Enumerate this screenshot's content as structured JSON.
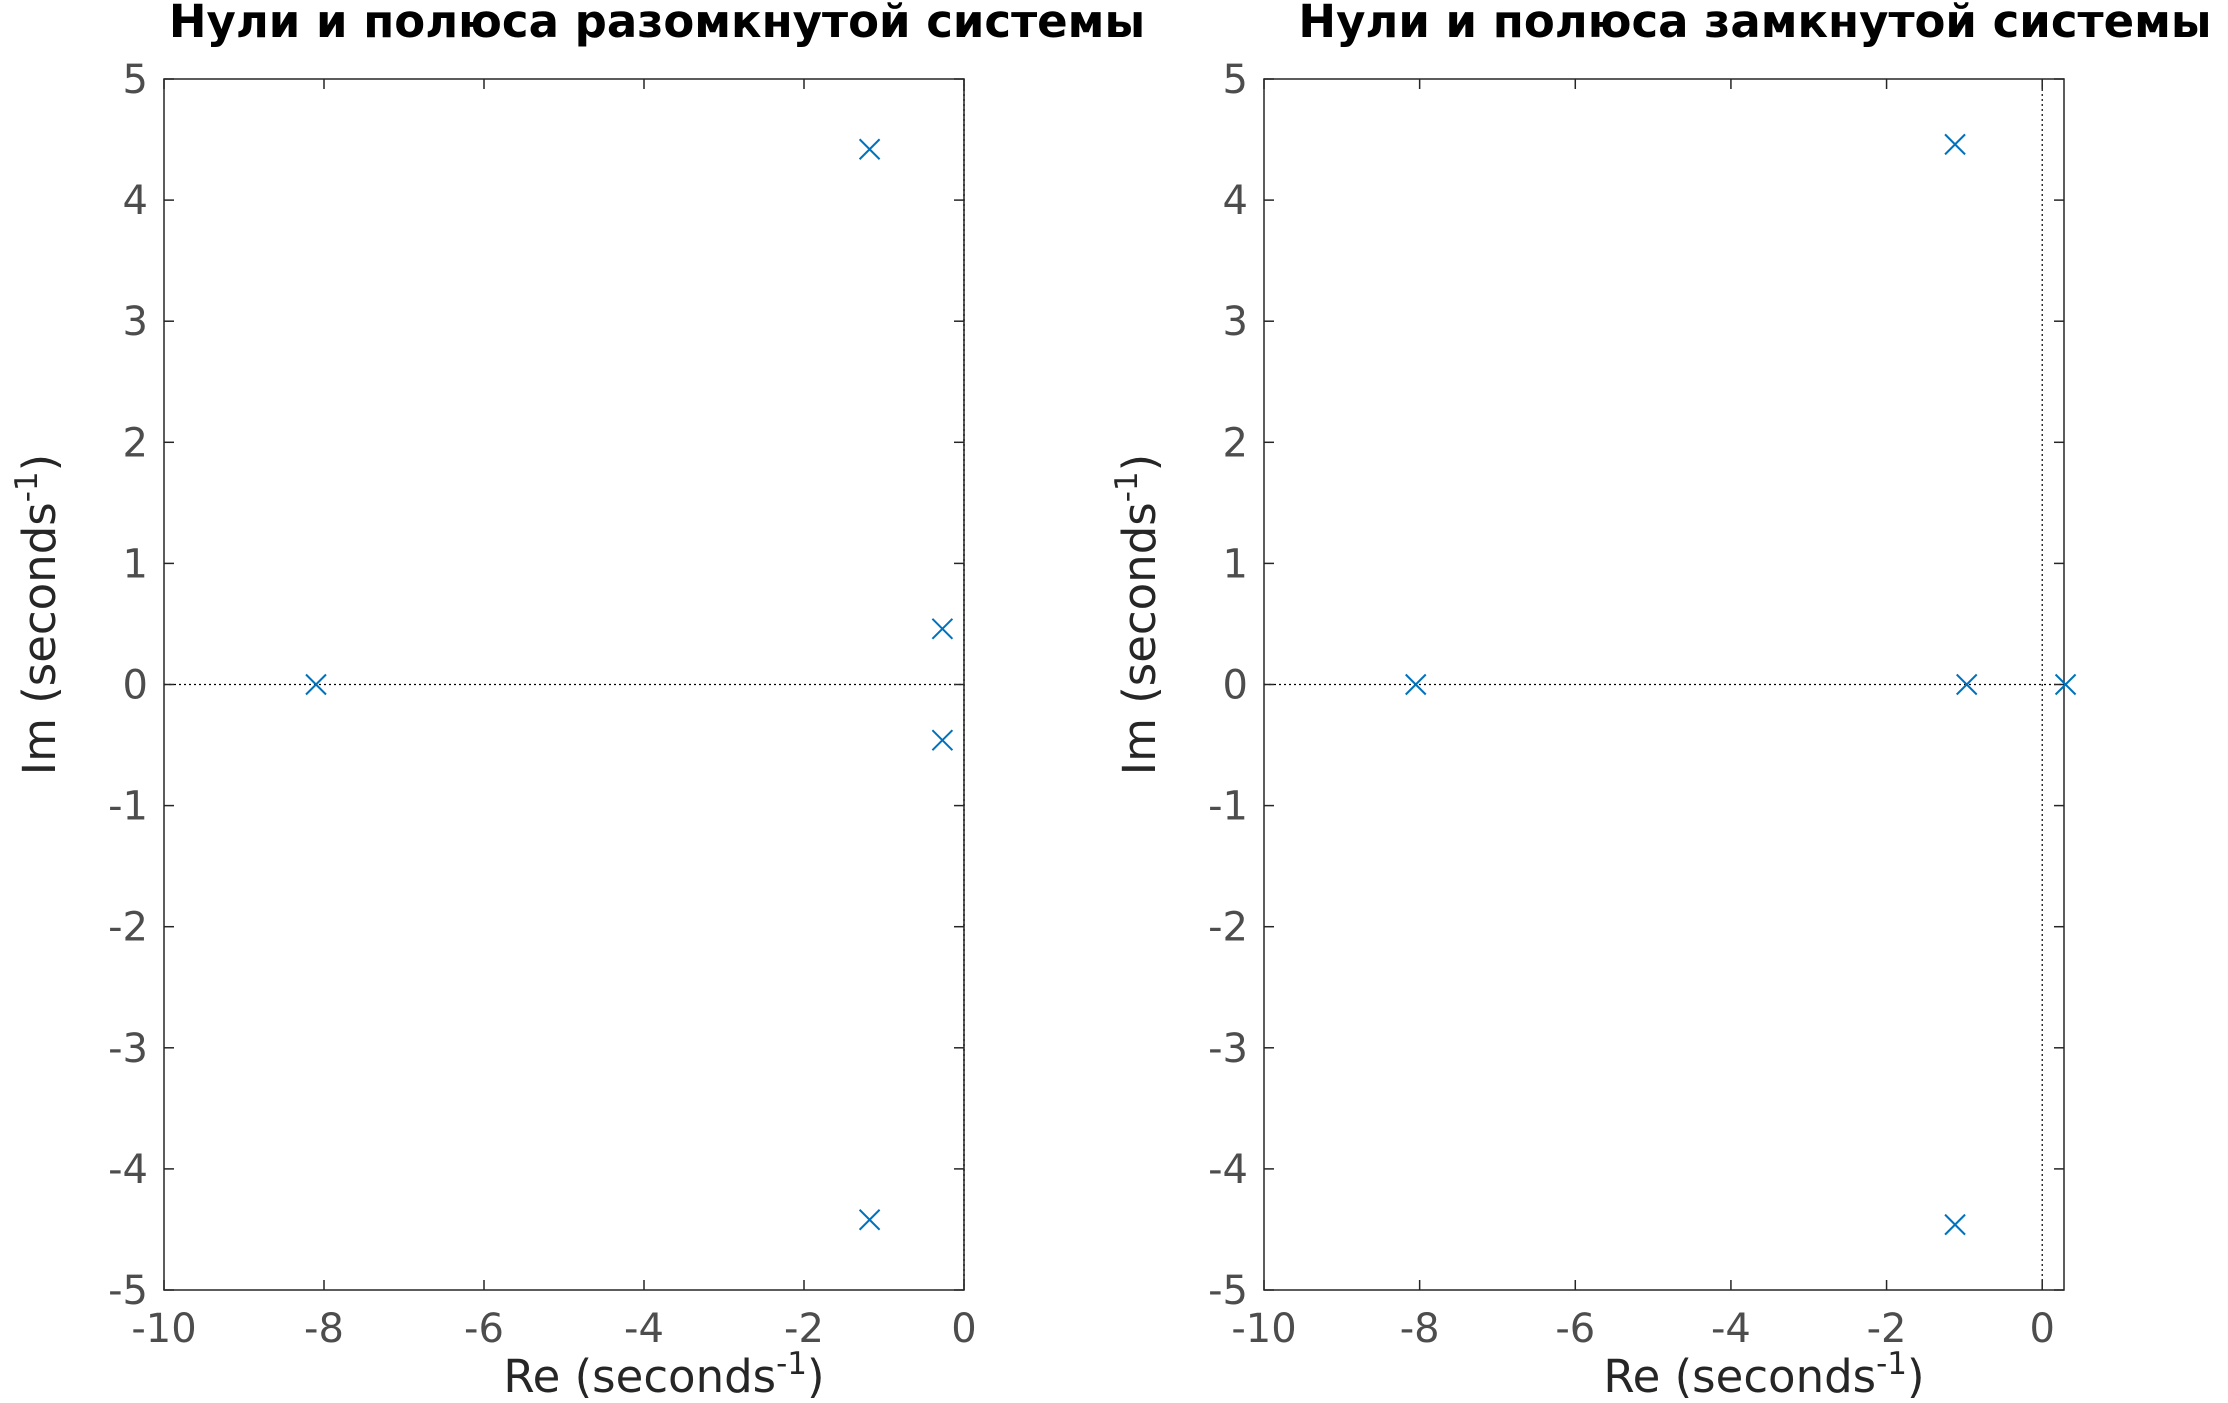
{
  "chart_data": [
    {
      "type": "scatter",
      "title": "Нули и полюса разомкнутой системы",
      "xlabel": {
        "base": "Re (seconds",
        "sup": "-1",
        "tail": ")"
      },
      "ylabel": {
        "base": "Im (seconds",
        "sup": "-1",
        "tail": ")"
      },
      "xlim": [
        -10,
        0
      ],
      "ylim": [
        -5,
        5
      ],
      "xticks": [
        "-10",
        "-8",
        "-6",
        "-4",
        "-2",
        "0"
      ],
      "yticks": [
        "5",
        "4",
        "3",
        "2",
        "1",
        "0",
        "-1",
        "-2",
        "-3",
        "-4",
        "-5"
      ],
      "reference_lines": {
        "horizontal_at": 0,
        "vertical_at": 0
      },
      "grid": false,
      "marker": "x",
      "marker_color": "#0072BD",
      "series": [
        {
          "x": [
            -1.18,
            -1.18,
            -0.27,
            -0.27,
            -8.1
          ],
          "y": [
            4.42,
            -4.42,
            0.46,
            -0.46,
            0
          ]
        }
      ]
    },
    {
      "type": "scatter",
      "title": "Нули и полюса замкнутой системы",
      "xlabel": {
        "base": "Re (seconds",
        "sup": "-1",
        "tail": ")"
      },
      "ylabel": {
        "base": "Im (seconds",
        "sup": "-1",
        "tail": ")"
      },
      "xlim": [
        -10,
        0.28
      ],
      "ylim": [
        -5,
        5
      ],
      "xticks": [
        "-10",
        "-8",
        "-6",
        "-4",
        "-2",
        "0"
      ],
      "yticks": [
        "5",
        "4",
        "3",
        "2",
        "1",
        "0",
        "-1",
        "-2",
        "-3",
        "-4",
        "-5"
      ],
      "reference_lines": {
        "horizontal_at": 0,
        "vertical_at": 0
      },
      "grid": false,
      "marker": "x",
      "marker_color": "#0072BD",
      "series": [
        {
          "x": [
            -1.12,
            -1.12,
            -0.97,
            0.3,
            -8.05
          ],
          "y": [
            4.46,
            -4.46,
            0,
            0,
            0
          ]
        }
      ]
    }
  ]
}
